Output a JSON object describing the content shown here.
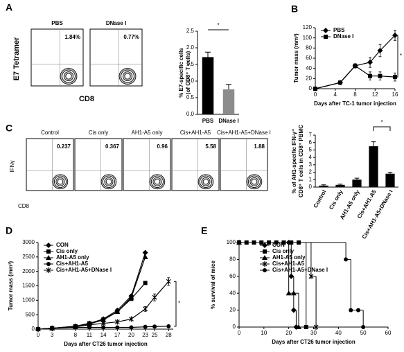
{
  "figure": {
    "panel_labels": [
      "A",
      "B",
      "C",
      "D",
      "E"
    ],
    "flow_a": {
      "y_label": "E7 Tetramer",
      "x_label": "CD8",
      "plots": [
        {
          "title": "PBS",
          "percent": "1.84%"
        },
        {
          "title": "DNase I",
          "percent": "0.77%"
        }
      ]
    },
    "flow_c": {
      "y_label": "IFNγ",
      "x_label": "CD8",
      "plots": [
        {
          "title": "Control",
          "percent": "0.237"
        },
        {
          "title": "Cis only",
          "percent": "0.367"
        },
        {
          "title": "AH1-A5 only",
          "percent": "0.96"
        },
        {
          "title": "Cis+AH1-A5",
          "percent": "5.58"
        },
        {
          "title": "Cis+AH1-A5+DNase I",
          "percent": "1.88"
        }
      ]
    }
  },
  "chart_data": [
    {
      "type": "bar",
      "y_label": [
        "% E7-specific cells",
        "(of CD8⁺ T cells)"
      ],
      "categories": [
        "PBS",
        "DNase I"
      ],
      "values": [
        1.72,
        0.75
      ],
      "errors": [
        0.15,
        0.15
      ],
      "colors": [
        "#000000",
        "#8c8c8c"
      ],
      "ylim": [
        0,
        2.5
      ],
      "yticks": [
        {
          "value": 0,
          "label": "0.0"
        },
        0.5,
        {
          "value": 1,
          "label": "1.0"
        },
        1.5,
        {
          "value": 2,
          "label": "2.0"
        },
        2.5
      ],
      "annotation": "*"
    },
    {
      "type": "line",
      "x_label": "Days after TC-1 tumor injection",
      "y_label": "Tumor mass (mm³)",
      "x": [
        0,
        5,
        8,
        11,
        13,
        16
      ],
      "xlim": [
        0,
        16
      ],
      "xticks": [
        0,
        4,
        8,
        12,
        16
      ],
      "ylim": [
        0,
        120
      ],
      "yticks": [
        0,
        20,
        40,
        60,
        80,
        100,
        120
      ],
      "legend": "upper left",
      "series": [
        {
          "name": "PBS",
          "color": "#000000",
          "marker": "diamond",
          "values": [
            0,
            12,
            45,
            52,
            75,
            105
          ],
          "errors": [
            1,
            3,
            4,
            10,
            12,
            10
          ]
        },
        {
          "name": "DNase I",
          "color": "#000000",
          "marker": "square",
          "values": [
            0,
            12,
            45,
            25,
            25,
            23
          ],
          "errors": [
            1,
            3,
            4,
            8,
            8,
            8
          ]
        }
      ],
      "annotation": "*"
    },
    {
      "type": "bar",
      "y_label": [
        "% of AH1-specific IFN-γ⁺",
        "CD8⁺ T cells in CD8⁺ PBMC"
      ],
      "categories": [
        "Control",
        "Cis only",
        "AH1-A5 only",
        "Cis+AH1-A5",
        "Cis+AH1-A5+DNase I"
      ],
      "values": [
        0.2,
        0.3,
        1.0,
        5.5,
        1.8
      ],
      "errors": [
        0.1,
        0.1,
        0.2,
        0.6,
        0.2
      ],
      "colors": [
        "#000000",
        "#000000",
        "#000000",
        "#000000",
        "#000000"
      ],
      "ylim": [
        0,
        7
      ],
      "yticks": [
        0,
        1,
        2,
        3,
        4,
        5,
        6,
        7
      ],
      "annotation": "*"
    },
    {
      "type": "line",
      "x_label": "Days after CT26 tumor injection",
      "y_label": "Tumor mass (mm³)",
      "x": [
        0,
        3,
        8,
        11,
        14,
        17,
        20,
        23,
        25,
        28
      ],
      "xlim": [
        0,
        29
      ],
      "xticks": [
        0,
        3,
        8,
        11,
        14,
        17,
        20,
        23,
        25,
        28
      ],
      "ylim": [
        0,
        3000
      ],
      "yticks": [
        0,
        500,
        1000,
        1500,
        2000,
        2500,
        3000
      ],
      "legend": "upper left",
      "series": [
        {
          "name": "CON",
          "color": "#000000",
          "marker": "diamond",
          "values": [
            0,
            30,
            100,
            200,
            350,
            650,
            1150,
            2650,
            null,
            null
          ]
        },
        {
          "name": "Cis only",
          "color": "#000000",
          "marker": "square",
          "values": [
            0,
            30,
            100,
            200,
            330,
            600,
            1050,
            1600,
            null,
            null
          ]
        },
        {
          "name": "AH1-A5 only",
          "color": "#000000",
          "marker": "triangle",
          "values": [
            0,
            30,
            100,
            180,
            320,
            600,
            1100,
            2500,
            null,
            null
          ]
        },
        {
          "name": "Cis+AH1-A5",
          "color": "#000000",
          "marker": "circle",
          "values": [
            0,
            30,
            60,
            60,
            60,
            60,
            60,
            80,
            90,
            100
          ]
        },
        {
          "name": "Cis+AH1-A5+DNase I",
          "color": "#000000",
          "marker": "cross",
          "values": [
            0,
            30,
            80,
            150,
            200,
            250,
            350,
            700,
            1100,
            1650
          ],
          "errors": [
            null,
            null,
            null,
            null,
            null,
            null,
            null,
            80,
            120,
            130
          ]
        }
      ],
      "annotation": "*"
    },
    {
      "type": "step",
      "x_label": "Days after CT26 tumor injection",
      "y_label": "% survival of mice",
      "xlim": [
        0,
        60
      ],
      "xticks": [
        0,
        10,
        20,
        30,
        40,
        50,
        60
      ],
      "ylim": [
        0,
        100
      ],
      "yticks": [
        0,
        20,
        40,
        60,
        80,
        100
      ],
      "legend": "upper left",
      "series": [
        {
          "name": "CON",
          "color": "#000000",
          "marker": "diamond",
          "x": [
            0,
            20,
            21,
            22,
            23
          ],
          "values": [
            100,
            100,
            60,
            20,
            0
          ]
        },
        {
          "name": "Cis only",
          "color": "#000000",
          "marker": "square",
          "x": [
            0,
            3,
            6,
            9,
            12,
            15,
            18,
            21,
            24,
            27
          ],
          "values": [
            100,
            100,
            100,
            100,
            100,
            100,
            100,
            100,
            100,
            0
          ]
        },
        {
          "name": "AH1-A5 only",
          "color": "#000000",
          "marker": "triangle",
          "x": [
            0,
            20,
            22,
            24
          ],
          "values": [
            100,
            40,
            40,
            0
          ]
        },
        {
          "name": "Cis+AH1-A5",
          "color": "#000000",
          "marker": "cross",
          "x": [
            0,
            29,
            31
          ],
          "values": [
            100,
            60,
            0
          ]
        },
        {
          "name": "Cis+AH1-A5+DNase I",
          "color": "#000000",
          "marker": "circle",
          "x": [
            0,
            43,
            45,
            48,
            50
          ],
          "values": [
            100,
            80,
            20,
            20,
            0
          ]
        }
      ]
    }
  ]
}
